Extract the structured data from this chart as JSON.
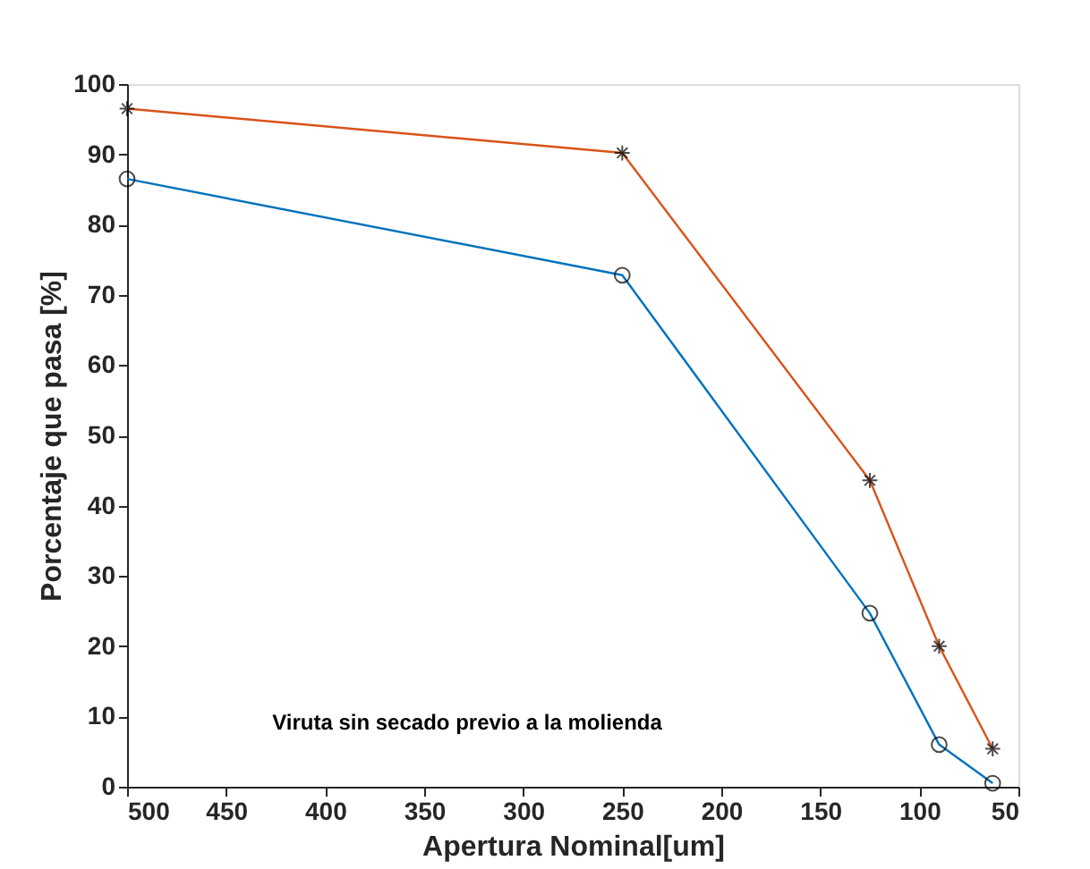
{
  "chart_data": {
    "type": "line",
    "xlabel": "Apertura Nominal[um]",
    "ylabel": "Porcentaje que pasa [%]",
    "x": [
      500,
      250,
      125,
      90,
      63
    ],
    "series": [
      {
        "color": "#0072bd",
        "marker": "circle",
        "values": [
          86.5,
          72.8,
          24.7,
          6,
          0.5
        ]
      },
      {
        "color": "#d95319",
        "marker": "cross",
        "values": [
          96.5,
          90.2,
          43.6,
          20,
          5.4
        ]
      }
    ],
    "xlim": [
      500,
      50
    ],
    "xticks": [
      500,
      450,
      400,
      350,
      300,
      250,
      200,
      150,
      100,
      50
    ],
    "ylim": [
      0,
      100
    ],
    "yticks": [
      0,
      10,
      20,
      30,
      40,
      50,
      60,
      70,
      80,
      90,
      100
    ],
    "annotations": [
      "Viruta sin secado previo a la molienda"
    ],
    "grid": false,
    "line_style": "solid"
  }
}
